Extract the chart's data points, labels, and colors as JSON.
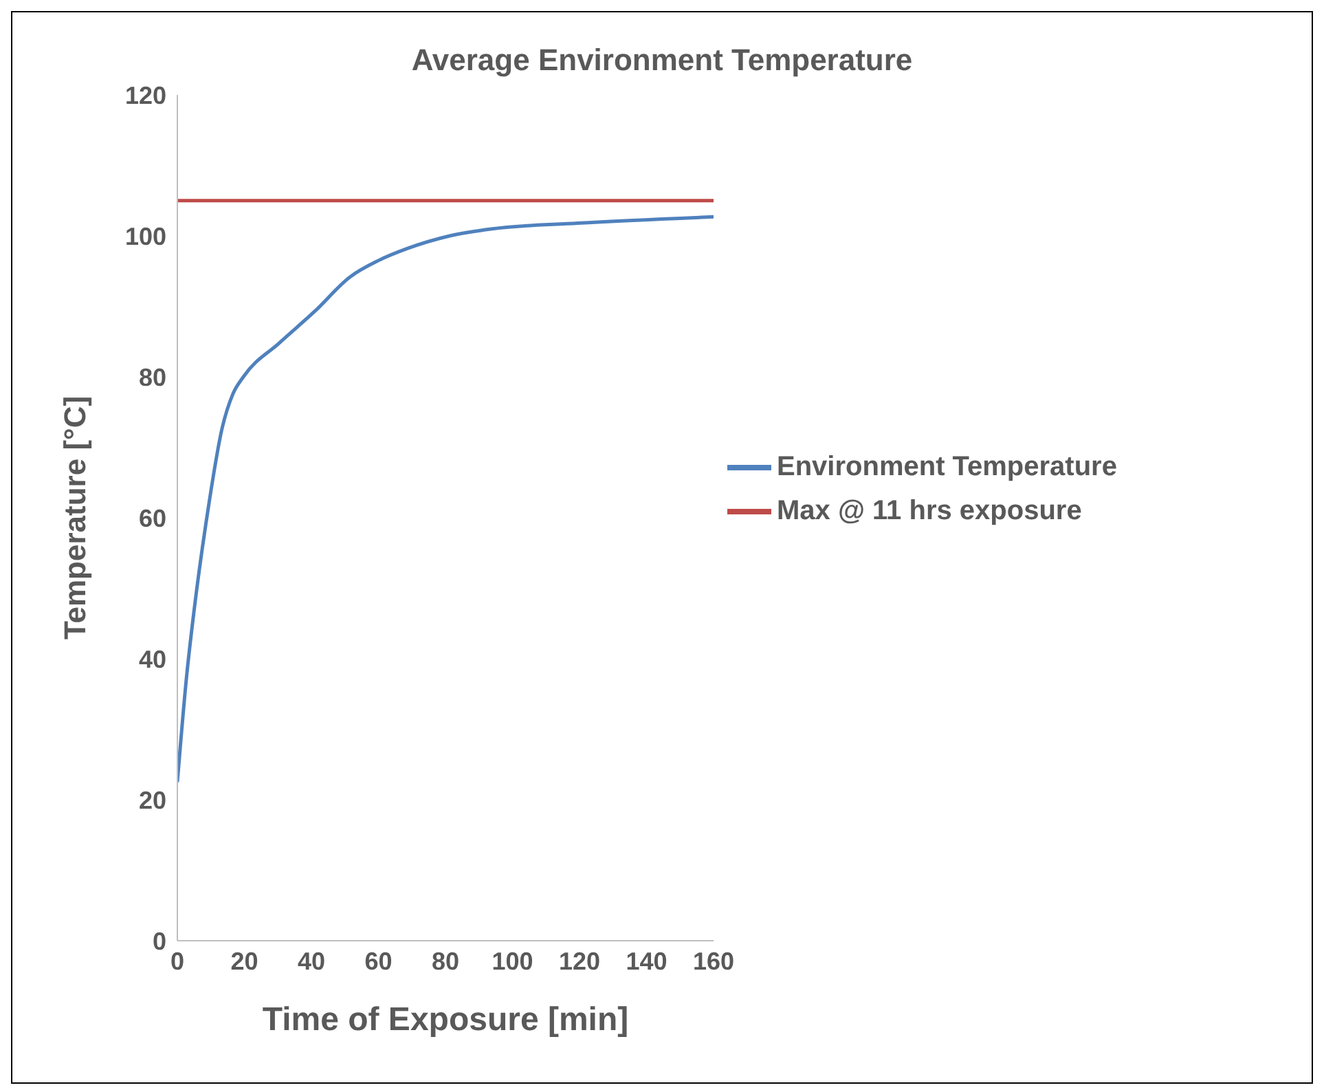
{
  "chart_data": {
    "type": "line",
    "title": "Average Environment Temperature",
    "xlabel": "Time of Exposure [min]",
    "ylabel": "Temperature [°C]",
    "xlim": [
      0,
      160
    ],
    "xticks": [
      0,
      20,
      40,
      60,
      80,
      100,
      120,
      140,
      160
    ],
    "ylim": [
      0,
      120
    ],
    "yticks": [
      0,
      20,
      40,
      60,
      80,
      100,
      120
    ],
    "grid": false,
    "legend": "right",
    "marker": "none",
    "line_style": "solid",
    "series": [
      {
        "name": "Environment Temperature",
        "color": "#4f81bd",
        "x": [
          0,
          2.8,
          4.9,
          9.1,
          13.4,
          16.6,
          19.7,
          30.4,
          41,
          51.6,
          60,
          68.6,
          81.3,
          94,
          119.5,
          160
        ],
        "values": [
          22.5,
          37.7,
          46.5,
          61,
          72.8,
          77.6,
          80,
          84.8,
          89.3,
          94.2,
          96.5,
          98.2,
          100,
          101,
          101.8,
          102.7
        ]
      },
      {
        "name": "Max @ 11 hrs exposure",
        "color": "#be4b48",
        "x": [
          0,
          160
        ],
        "values": [
          105,
          105
        ]
      }
    ]
  }
}
